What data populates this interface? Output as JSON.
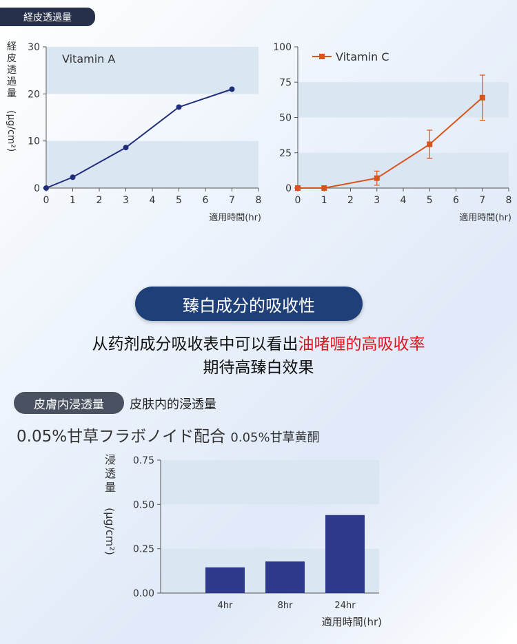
{
  "header": {
    "badge": "経皮透過量"
  },
  "chart_data": [
    {
      "type": "line",
      "ylabel": "経皮透過量 (μg/cm²)",
      "xlabel": "適用時間(hr)",
      "ylim": [
        0,
        30
      ],
      "xlim": [
        0,
        8
      ],
      "yticks": [
        "0",
        "10",
        "20",
        "30"
      ],
      "xticks": [
        "0",
        "1",
        "2",
        "3",
        "4",
        "5",
        "6",
        "7",
        "8"
      ],
      "series": [
        {
          "name": "Vitamin A",
          "x": [
            0,
            1,
            3,
            5,
            7
          ],
          "y": [
            0,
            2.3,
            8.6,
            17.2,
            21
          ]
        }
      ],
      "color": "#1f2d7a"
    },
    {
      "type": "line",
      "xlabel": "適用時間(hr)",
      "ylim": [
        0,
        100
      ],
      "xlim": [
        0,
        8
      ],
      "yticks": [
        "0",
        "25",
        "50",
        "75",
        "100"
      ],
      "xticks": [
        "0",
        "1",
        "2",
        "3",
        "4",
        "5",
        "6",
        "7",
        "8"
      ],
      "series": [
        {
          "name": "Vitamin C",
          "x": [
            0,
            1,
            3,
            5,
            7
          ],
          "y": [
            0,
            0,
            7,
            31,
            64
          ],
          "err": [
            0,
            0,
            5,
            10,
            16
          ]
        }
      ],
      "color": "#d9541a"
    },
    {
      "type": "bar",
      "ylabel": "浸透量 (μg/cm²)",
      "xlabel": "適用時間(hr)",
      "categories": [
        "4hr",
        "8hr",
        "24hr"
      ],
      "values": [
        0.145,
        0.178,
        0.44
      ],
      "ylim": [
        0,
        0.75
      ],
      "yticks": [
        "0.00",
        "0.25",
        "0.50",
        "0.75"
      ],
      "color": "#2e3a8c"
    }
  ],
  "banner": "臻白成分的吸收性",
  "text": {
    "line1_pre": "从药剂成分吸收表中可以看出",
    "line1_red": "油啫喱的高吸收率",
    "line2": "期待高臻白效果"
  },
  "section2": {
    "badge": "皮膚内浸透量",
    "subtitle": "皮肤内的浸透量",
    "formula": "0.05%甘草フラボノイド配合",
    "formula_cn": "0.05%甘草黄酮"
  },
  "colors": {
    "accent_navy": "#1e3f78",
    "orange": "#d9541a",
    "bar": "#2e3a8c",
    "red_text": "#e0141e"
  }
}
